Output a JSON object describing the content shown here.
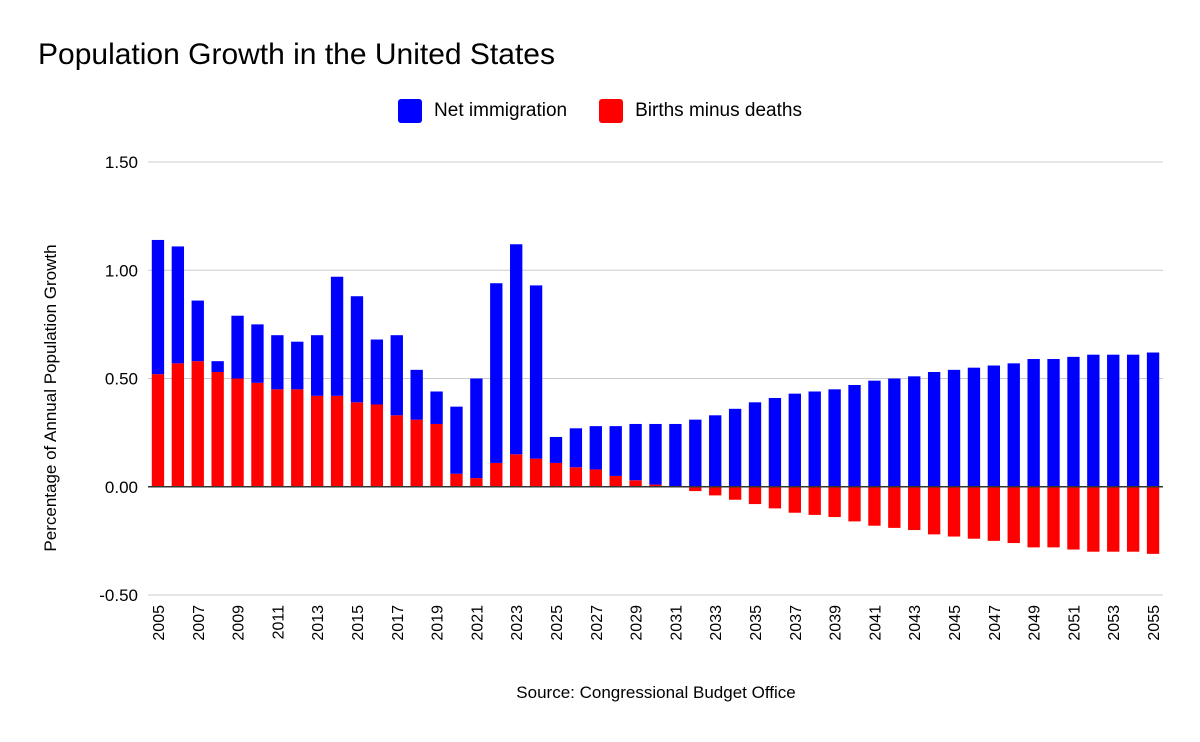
{
  "chart_data": {
    "type": "bar",
    "stacked": true,
    "title": "Population Growth in the United States",
    "ylabel": "Percentage of Annual Population Growth",
    "xlabel": "Source: Congressional Budget Office",
    "ylim": [
      -0.5,
      1.5
    ],
    "yticks": [
      "1.50",
      "1.00",
      "0.50",
      "0.00",
      "-0.50"
    ],
    "ytick_values": [
      1.5,
      1.0,
      0.5,
      0.0,
      -0.5
    ],
    "grid": true,
    "legend_position": "top",
    "categories": [
      "2005",
      "2006",
      "2007",
      "2008",
      "2009",
      "2010",
      "2011",
      "2012",
      "2013",
      "2014",
      "2015",
      "2016",
      "2017",
      "2018",
      "2019",
      "2020",
      "2021",
      "2022",
      "2023",
      "2024",
      "2025",
      "2026",
      "2027",
      "2028",
      "2029",
      "2030",
      "2031",
      "2032",
      "2033",
      "2034",
      "2035",
      "2036",
      "2037",
      "2038",
      "2039",
      "2040",
      "2041",
      "2042",
      "2043",
      "2044",
      "2045",
      "2046",
      "2047",
      "2048",
      "2049",
      "2050",
      "2051",
      "2052",
      "2053",
      "2054",
      "2055"
    ],
    "series": [
      {
        "name": "Net immigration",
        "color": "#0000ff",
        "values": [
          0.62,
          0.54,
          0.28,
          0.05,
          0.29,
          0.27,
          0.25,
          0.22,
          0.28,
          0.55,
          0.49,
          0.3,
          0.37,
          0.23,
          0.15,
          0.31,
          0.46,
          0.83,
          0.97,
          0.8,
          0.12,
          0.18,
          0.2,
          0.23,
          0.26,
          0.28,
          0.29,
          0.31,
          0.33,
          0.36,
          0.39,
          0.41,
          0.43,
          0.44,
          0.45,
          0.47,
          0.49,
          0.5,
          0.51,
          0.53,
          0.54,
          0.55,
          0.56,
          0.57,
          0.59,
          0.59,
          0.6,
          0.61,
          0.61,
          0.61,
          0.62
        ]
      },
      {
        "name": "Births minus deaths",
        "color": "#ff0000",
        "values": [
          0.52,
          0.57,
          0.58,
          0.53,
          0.5,
          0.48,
          0.45,
          0.45,
          0.42,
          0.42,
          0.39,
          0.38,
          0.33,
          0.31,
          0.29,
          0.06,
          0.04,
          0.11,
          0.15,
          0.13,
          0.11,
          0.09,
          0.08,
          0.05,
          0.03,
          0.01,
          0.0,
          -0.02,
          -0.04,
          -0.06,
          -0.08,
          -0.1,
          -0.12,
          -0.13,
          -0.14,
          -0.16,
          -0.18,
          -0.19,
          -0.2,
          -0.22,
          -0.23,
          -0.24,
          -0.25,
          -0.26,
          -0.28,
          -0.28,
          -0.29,
          -0.3,
          -0.3,
          -0.3,
          -0.31
        ]
      }
    ]
  }
}
